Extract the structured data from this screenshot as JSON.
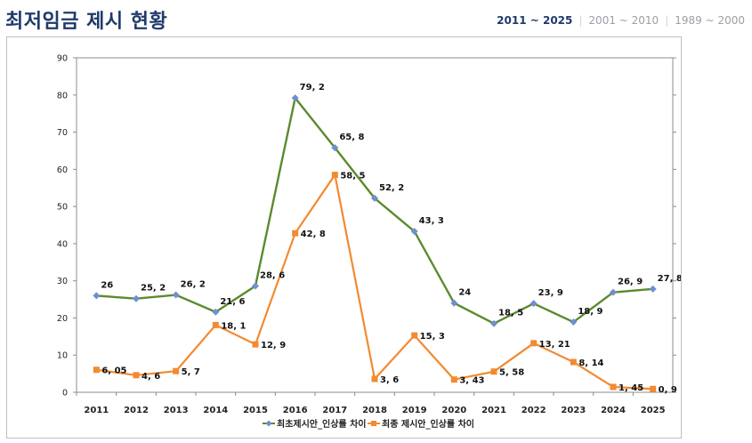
{
  "header": {
    "title": "최저임금 제시 현황",
    "tabs": [
      {
        "label": "2011 ~ 2025",
        "active": true
      },
      {
        "label": "2001 ~ 2010",
        "active": false
      },
      {
        "label": "1989 ~ 2000",
        "active": false
      }
    ]
  },
  "colors": {
    "series1": "#5b8a2e",
    "series1_marker": "#6f8fd0",
    "series2": "#f28a30",
    "title": "#1f3a6b"
  },
  "chart_data": {
    "type": "line",
    "title": "",
    "xlabel": "",
    "ylabel": "",
    "ylim": [
      0,
      90
    ],
    "yticks": [
      0,
      10,
      20,
      30,
      40,
      50,
      60,
      70,
      80,
      90
    ],
    "secondary_y_axis": true,
    "grid": false,
    "legend_position": "bottom",
    "categories": [
      "2011",
      "2012",
      "2013",
      "2014",
      "2015",
      "2016",
      "2017",
      "2018",
      "2019",
      "2020",
      "2021",
      "2022",
      "2023",
      "2024",
      "2025"
    ],
    "series": [
      {
        "name": "최초제시안_인상률 차이",
        "values": [
          26,
          25.2,
          26.2,
          21.6,
          28.6,
          79.2,
          65.8,
          52.2,
          43.3,
          24,
          18.5,
          23.9,
          18.9,
          26.9,
          27.8
        ],
        "labels": [
          "26",
          "25, 2",
          "26, 2",
          "21, 6",
          "28, 6",
          "79, 2",
          "65, 8",
          "52, 2",
          "43, 3",
          "24",
          "18, 5",
          "23, 9",
          "18, 9",
          "26, 9",
          "27, 8"
        ]
      },
      {
        "name": "최종 제시안_인상률 차이",
        "values": [
          6.05,
          4.6,
          5.7,
          18.1,
          12.9,
          42.8,
          58.5,
          3.6,
          15.3,
          3.43,
          5.58,
          13.21,
          8.14,
          1.45,
          0.9
        ],
        "labels": [
          "6, 05",
          "4, 6",
          "5, 7",
          "18, 1",
          "12, 9",
          "42, 8",
          "58, 5",
          "3, 6",
          "15, 3",
          "3, 43",
          "5, 58",
          "13, 21",
          "8, 14",
          "1, 45",
          "0, 9"
        ]
      }
    ]
  }
}
